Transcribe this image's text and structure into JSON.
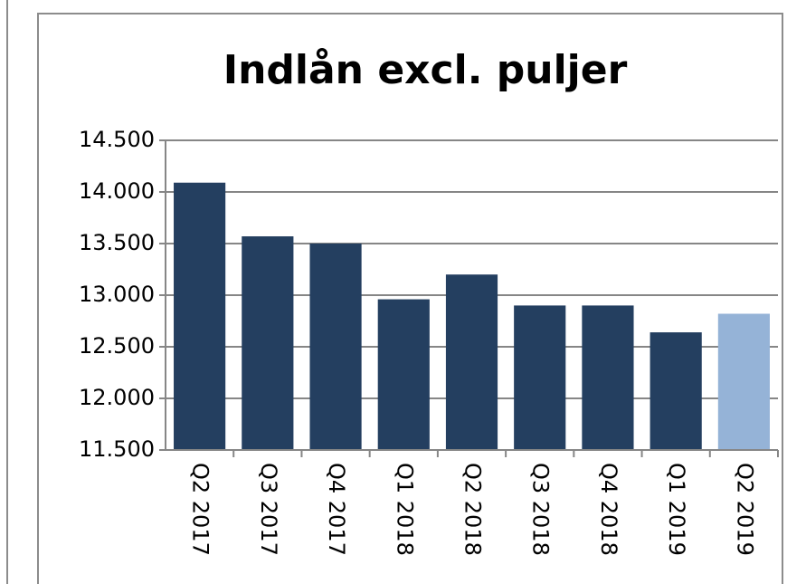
{
  "chart_data": {
    "type": "bar",
    "title": "Indlån excl. puljer",
    "categories": [
      "Q2 2017",
      "Q3 2017",
      "Q4 2017",
      "Q1 2018",
      "Q2 2018",
      "Q3 2018",
      "Q4 2018",
      "Q1 2019",
      "Q2 2019"
    ],
    "values": [
      14090,
      13570,
      13500,
      12960,
      13200,
      12900,
      12900,
      12640,
      12820
    ],
    "colors": [
      "#243f60",
      "#243f60",
      "#243f60",
      "#243f60",
      "#243f60",
      "#243f60",
      "#243f60",
      "#243f60",
      "#95b3d7"
    ],
    "ylim": [
      11500,
      14500
    ],
    "yticks": [
      {
        "value": 11500,
        "label": "11.500"
      },
      {
        "value": 12000,
        "label": "12.000"
      },
      {
        "value": 12500,
        "label": "12.500"
      },
      {
        "value": 13000,
        "label": "13.000"
      },
      {
        "value": 13500,
        "label": "13.500"
      },
      {
        "value": 14000,
        "label": "14.000"
      },
      {
        "value": 14500,
        "label": "14.500"
      }
    ],
    "grid": true
  }
}
